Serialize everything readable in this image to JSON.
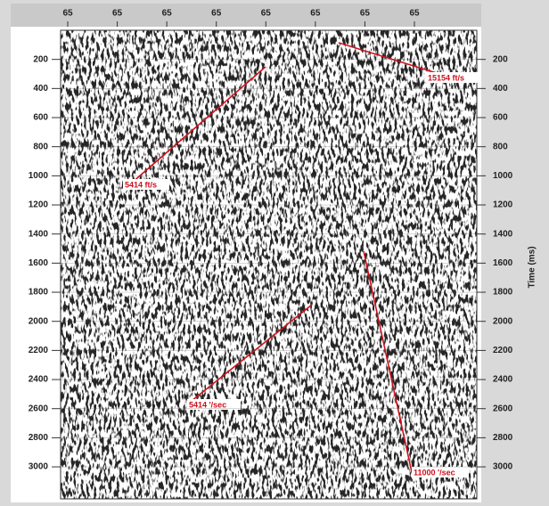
{
  "top_labels": [
    "65",
    "65",
    "65",
    "65",
    "65",
    "65",
    "65",
    "65"
  ],
  "y_axis": {
    "label": "Time (ms)",
    "ylim": [
      0,
      3220
    ],
    "ticks": [
      200,
      400,
      600,
      800,
      1000,
      1200,
      1400,
      1600,
      1800,
      2000,
      2200,
      2400,
      2600,
      2800,
      3000
    ]
  },
  "annotations": [
    {
      "label": "15154 ft/s"
    },
    {
      "label": "5414 ft/s"
    },
    {
      "label": "5414 '/sec"
    },
    {
      "label": "11000 '/sec"
    }
  ]
}
